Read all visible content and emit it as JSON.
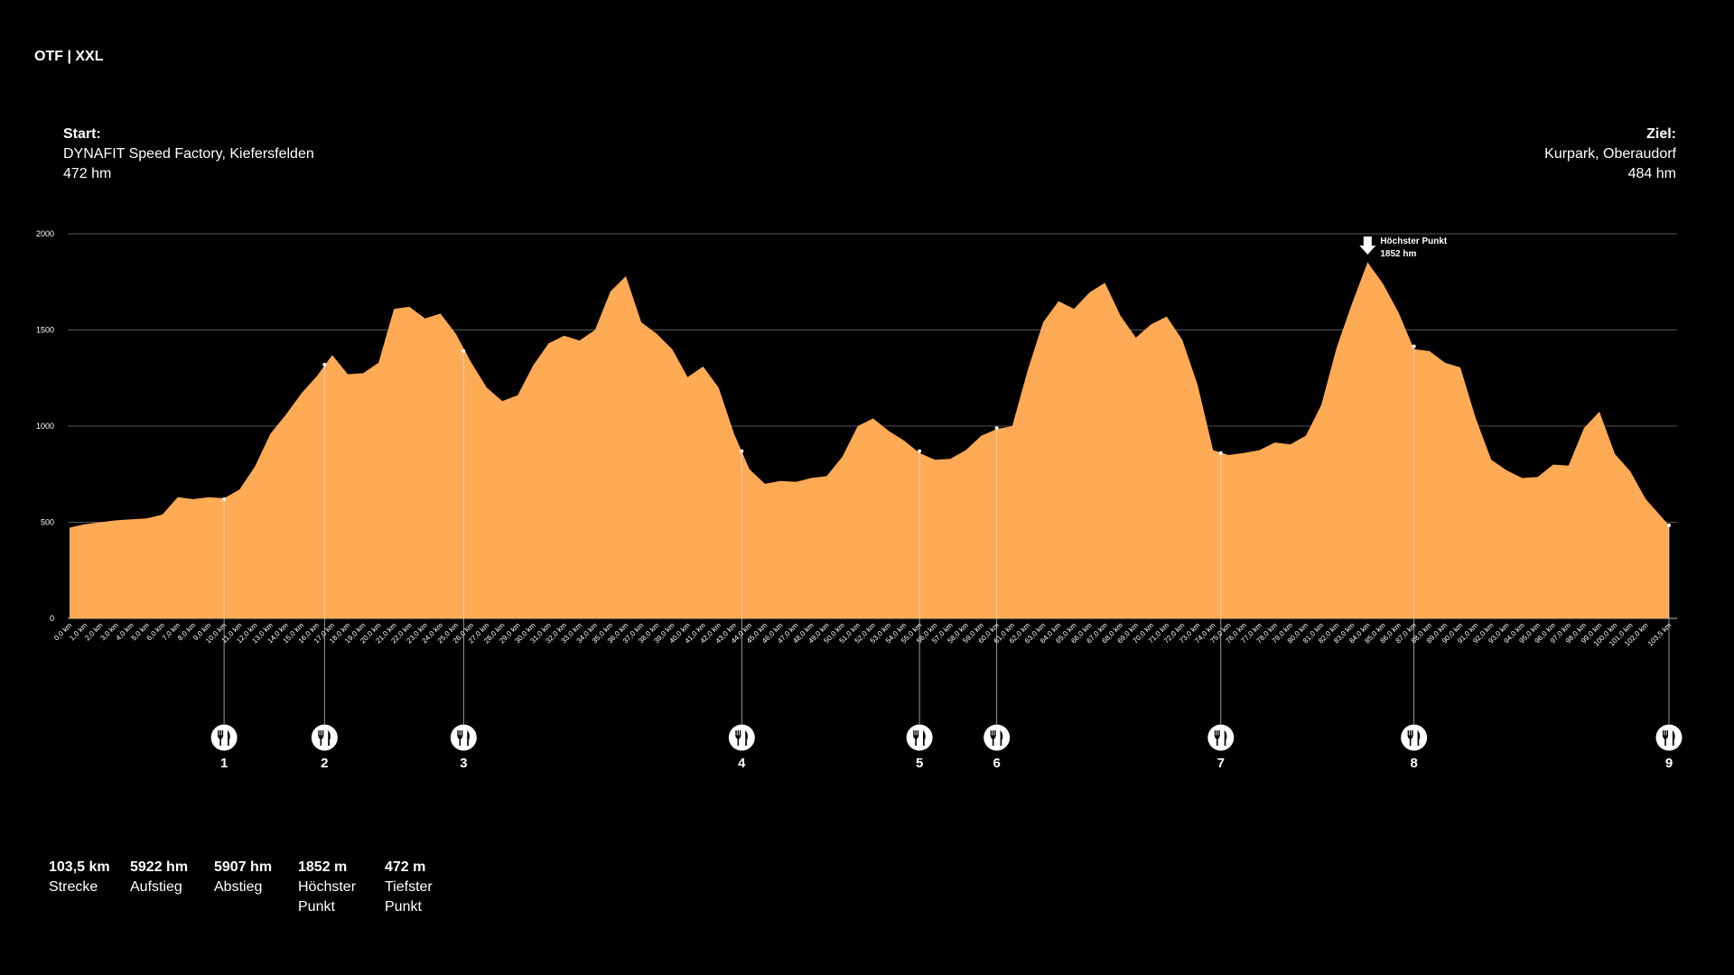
{
  "brand": "OTF | XXL",
  "start": {
    "label": "Start:",
    "name": "DYNAFIT Speed Factory, Kiefersfelden",
    "elevation": "472 hm"
  },
  "ziel": {
    "label": "Ziel:",
    "name": "Kurpark, Oberaudorf",
    "elevation": "484 hm"
  },
  "peak": {
    "label": "Höchster Punkt",
    "value": "1852 hm",
    "km": 84
  },
  "stats": [
    {
      "value": "103,5 km",
      "label": "Strecke"
    },
    {
      "value": "5922 hm",
      "label": "Aufstieg"
    },
    {
      "value": "5907 hm",
      "label": "Abstieg"
    },
    {
      "value": "1852 m",
      "label": "Höchster Punkt"
    },
    {
      "value": "472 m",
      "label": "Tiefster Punkt"
    }
  ],
  "colors": {
    "fill": "#FFAA55",
    "background": "#000000",
    "grid": "#555555",
    "text": "#FFFFFF"
  },
  "chart_data": {
    "type": "area",
    "title": "",
    "xlabel": "",
    "ylabel": "",
    "ylim": [
      0,
      2000
    ],
    "xlim": [
      0,
      103.5
    ],
    "yticks": [
      0,
      500,
      1000,
      1500,
      2000
    ],
    "x_tick_labels": [
      "0,0 km",
      "1,0 km",
      "2,0 km",
      "3,0 km",
      "4,0 km",
      "5,0 km",
      "6,0 km",
      "7,0 km",
      "8,0 km",
      "9,0 km",
      "10,0 km",
      "11,0 km",
      "12,0 km",
      "13,0 km",
      "14,0 km",
      "15,0 km",
      "16,0 km",
      "17,0 km",
      "18,0 km",
      "19,0 km",
      "20,0 km",
      "21,0 km",
      "22,0 km",
      "23,0 km",
      "24,0 km",
      "25,0 km",
      "26,0 km",
      "27,0 km",
      "28,0 km",
      "29,0 km",
      "30,0 km",
      "31,0 km",
      "32,0 km",
      "33,0 km",
      "34,0 km",
      "35,0 km",
      "36,0 km",
      "37,0 km",
      "38,0 km",
      "39,0 km",
      "40,0 km",
      "41,0 km",
      "42,0 km",
      "43,0 km",
      "44,0 km",
      "45,0 km",
      "46,0 km",
      "47,0 km",
      "48,0 km",
      "49,0 km",
      "50,0 km",
      "51,0 km",
      "52,0 km",
      "53,0 km",
      "54,0 km",
      "55,0 km",
      "56,0 km",
      "57,0 km",
      "58,0 km",
      "59,0 km",
      "60,0 km",
      "61,0 km",
      "62,0 km",
      "63,0 km",
      "64,0 km",
      "65,0 km",
      "66,0 km",
      "67,0 km",
      "68,0 km",
      "69,0 km",
      "70,0 km",
      "71,0 km",
      "72,0 km",
      "73,0 km",
      "74,0 km",
      "75,0 km",
      "76,0 km",
      "77,0 km",
      "78,0 km",
      "79,0 km",
      "80,0 km",
      "81,0 km",
      "82,0 km",
      "83,0 km",
      "84,0 km",
      "85,0 km",
      "86,0 km",
      "87,0 km",
      "88,0 km",
      "89,0 km",
      "90,0 km",
      "91,0 km",
      "92,0 km",
      "93,0 km",
      "94,0 km",
      "95,0 km",
      "96,0 km",
      "97,0 km",
      "98,0 km",
      "99,0 km",
      "100,0 km",
      "101,0 km",
      "102,0 km",
      "103,5 km"
    ],
    "x_tick_values": [
      0,
      1,
      2,
      3,
      4,
      5,
      6,
      7,
      8,
      9,
      10,
      11,
      12,
      13,
      14,
      15,
      16,
      17,
      18,
      19,
      20,
      21,
      22,
      23,
      24,
      25,
      26,
      27,
      28,
      29,
      30,
      31,
      32,
      33,
      34,
      35,
      36,
      37,
      38,
      39,
      40,
      41,
      42,
      43,
      44,
      45,
      46,
      47,
      48,
      49,
      50,
      51,
      52,
      53,
      54,
      55,
      56,
      57,
      58,
      59,
      60,
      61,
      62,
      63,
      64,
      65,
      66,
      67,
      68,
      69,
      70,
      71,
      72,
      73,
      74,
      75,
      76,
      77,
      78,
      79,
      80,
      81,
      82,
      83,
      84,
      85,
      86,
      87,
      88,
      89,
      90,
      91,
      92,
      93,
      94,
      95,
      96,
      97,
      98,
      99,
      100,
      101,
      102,
      103.5
    ],
    "x": [
      0,
      1,
      2,
      3,
      4,
      5,
      6,
      7,
      8,
      9,
      10,
      11,
      12,
      13,
      14,
      15,
      16,
      17,
      18,
      19,
      20,
      21,
      22,
      23,
      24,
      25,
      26,
      27,
      28,
      29,
      30,
      31,
      32,
      33,
      34,
      35,
      36,
      37,
      38,
      39,
      40,
      41,
      42,
      43,
      44,
      45,
      46,
      47,
      48,
      49,
      50,
      51,
      52,
      53,
      54,
      55,
      56,
      57,
      58,
      59,
      60,
      61,
      62,
      63,
      64,
      65,
      66,
      67,
      68,
      69,
      70,
      71,
      72,
      73,
      74,
      75,
      76,
      77,
      78,
      79,
      80,
      81,
      82,
      83,
      84,
      85,
      86,
      87,
      88,
      89,
      90,
      91,
      92,
      93,
      94,
      95,
      96,
      97,
      98,
      99,
      100,
      101,
      102,
      103.5
    ],
    "y": [
      472,
      490,
      500,
      510,
      515,
      520,
      540,
      630,
      620,
      630,
      625,
      670,
      790,
      960,
      1060,
      1170,
      1260,
      1370,
      1270,
      1275,
      1330,
      1610,
      1620,
      1560,
      1585,
      1480,
      1330,
      1200,
      1130,
      1160,
      1315,
      1430,
      1470,
      1445,
      1500,
      1700,
      1780,
      1540,
      1480,
      1400,
      1255,
      1310,
      1200,
      960,
      775,
      700,
      715,
      710,
      730,
      740,
      840,
      1000,
      1040,
      975,
      925,
      860,
      825,
      830,
      875,
      950,
      985,
      1000,
      1290,
      1540,
      1650,
      1610,
      1695,
      1745,
      1575,
      1460,
      1530,
      1570,
      1450,
      1215,
      875,
      850,
      860,
      875,
      915,
      905,
      950,
      1110,
      1410,
      1640,
      1852,
      1740,
      1590,
      1400,
      1390,
      1330,
      1305,
      1040,
      825,
      770,
      730,
      735,
      800,
      795,
      990,
      1075,
      855,
      765,
      620,
      484
    ],
    "stops": [
      {
        "label": "1",
        "km": 10,
        "elevation": 620
      },
      {
        "label": "2",
        "km": 16.5,
        "elevation": 1320
      },
      {
        "label": "3",
        "km": 25.5,
        "elevation": 1390
      },
      {
        "label": "4",
        "km": 43.5,
        "elevation": 870
      },
      {
        "label": "5",
        "km": 55,
        "elevation": 870
      },
      {
        "label": "6",
        "km": 60,
        "elevation": 990
      },
      {
        "label": "7",
        "km": 74.5,
        "elevation": 860
      },
      {
        "label": "8",
        "km": 87,
        "elevation": 1415
      },
      {
        "label": "9",
        "km": 103.5,
        "elevation": 484
      }
    ],
    "stop_icon": "fork-knife-icon",
    "grid": true,
    "legend": "none"
  }
}
